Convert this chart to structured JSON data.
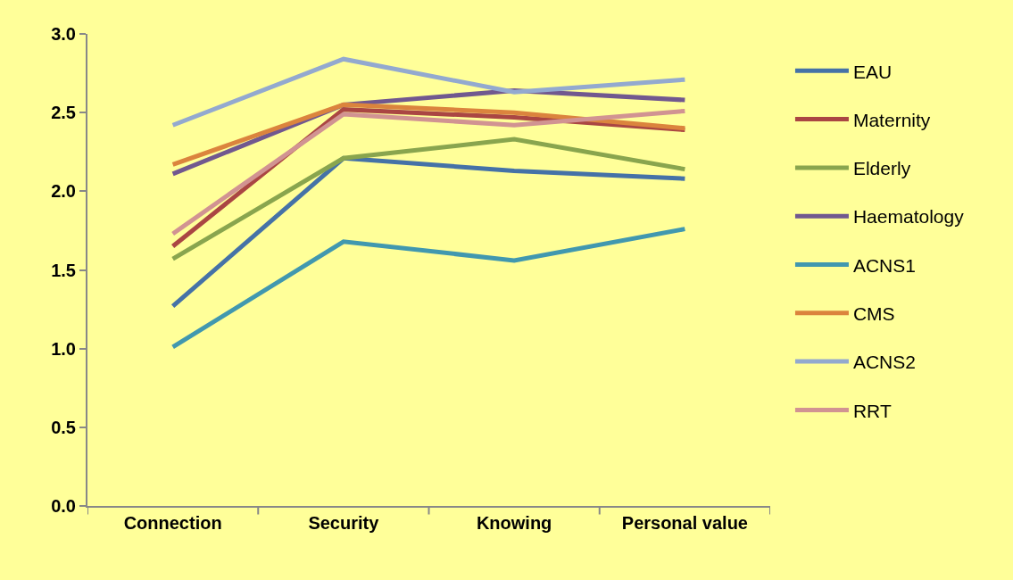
{
  "chart_data": {
    "type": "line",
    "categories": [
      "Connection",
      "Security",
      "Knowing",
      "Personal value"
    ],
    "ylim": [
      0,
      3
    ],
    "yticks": [
      {
        "value": 0,
        "label": "0.0"
      },
      {
        "value": 0.5,
        "label": "0.5"
      },
      {
        "value": 1,
        "label": "1.0"
      },
      {
        "value": 1.5,
        "label": "1.5"
      },
      {
        "value": 2,
        "label": "2.0"
      },
      {
        "value": 2.5,
        "label": "2.5"
      },
      {
        "value": 3,
        "label": "3.0"
      }
    ],
    "grid": false,
    "legend": "right",
    "marker": "none",
    "line_style": "solid",
    "series": [
      {
        "name": "EAU",
        "color": "#4572a7",
        "values": [
          1.27,
          2.21,
          2.13,
          2.08
        ]
      },
      {
        "name": "Maternity",
        "color": "#aa4643",
        "values": [
          1.65,
          2.52,
          2.47,
          2.39
        ]
      },
      {
        "name": "Elderly",
        "color": "#89a54e",
        "values": [
          1.57,
          2.21,
          2.33,
          2.14
        ]
      },
      {
        "name": "Haematology",
        "color": "#71588f",
        "values": [
          2.11,
          2.55,
          2.64,
          2.58
        ]
      },
      {
        "name": "ACNS1",
        "color": "#4198af",
        "values": [
          1.01,
          1.68,
          1.56,
          1.76
        ]
      },
      {
        "name": "CMS",
        "color": "#db843d",
        "values": [
          2.17,
          2.55,
          2.5,
          2.4
        ]
      },
      {
        "name": "ACNS2",
        "color": "#93a9cf",
        "values": [
          2.42,
          2.84,
          2.63,
          2.71
        ]
      },
      {
        "name": "RRT",
        "color": "#d19392",
        "values": [
          1.73,
          2.49,
          2.42,
          2.51
        ]
      }
    ]
  }
}
